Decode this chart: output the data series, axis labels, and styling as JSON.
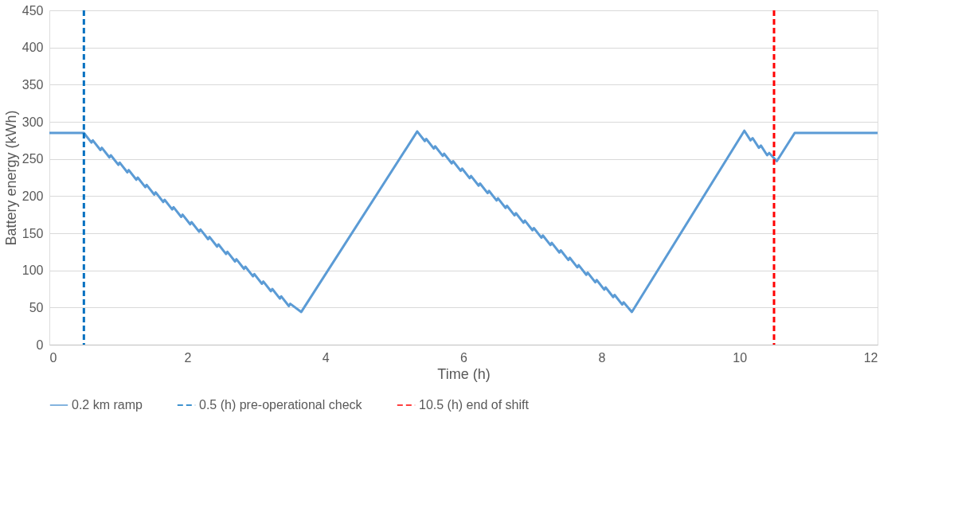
{
  "chart_data": {
    "type": "line",
    "xlabel": "Time (h)",
    "ylabel": "Battery energy (kWh)",
    "xlim": [
      0,
      12
    ],
    "xticks": [
      0,
      2,
      4,
      6,
      8,
      10,
      12
    ],
    "ylim": [
      0,
      450
    ],
    "yticks": [
      0,
      50,
      100,
      150,
      200,
      250,
      300,
      350,
      400,
      450
    ],
    "grid": "y",
    "legend": "bottom",
    "line_style": "solid",
    "marker": "none",
    "x": [
      0,
      0.5,
      0.61,
      0.63,
      0.74,
      0.76,
      0.87,
      0.89,
      1.0,
      1.02,
      1.13,
      1.15,
      1.26,
      1.28,
      1.39,
      1.41,
      1.52,
      1.54,
      1.65,
      1.67,
      1.78,
      1.8,
      1.91,
      1.93,
      2.04,
      2.06,
      2.17,
      2.19,
      2.3,
      2.32,
      2.43,
      2.45,
      2.56,
      2.58,
      2.69,
      2.71,
      2.82,
      2.84,
      2.95,
      2.97,
      3.08,
      3.1,
      3.21,
      3.23,
      3.34,
      3.36,
      3.47,
      3.49,
      3.65,
      5.33,
      5.44,
      5.46,
      5.57,
      5.59,
      5.7,
      5.72,
      5.83,
      5.85,
      5.96,
      5.98,
      6.09,
      6.11,
      6.22,
      6.24,
      6.35,
      6.37,
      6.48,
      6.5,
      6.61,
      6.63,
      6.74,
      6.76,
      6.87,
      6.89,
      7.0,
      7.02,
      7.13,
      7.15,
      7.26,
      7.28,
      7.39,
      7.41,
      7.52,
      7.54,
      7.65,
      7.67,
      7.78,
      7.8,
      7.91,
      7.93,
      8.04,
      8.06,
      8.17,
      8.19,
      8.3,
      8.32,
      8.44,
      10.07,
      10.16,
      10.19,
      10.28,
      10.31,
      10.4,
      10.43,
      10.54,
      10.8,
      12
    ],
    "series": [
      {
        "name": "0.2 km ramp",
        "color": "#5b9bd5",
        "values": [
          285,
          285,
          272,
          275,
          262,
          265,
          252,
          255,
          242,
          245,
          232,
          235,
          222,
          225,
          212,
          215,
          202,
          205,
          192,
          195,
          182,
          185,
          172,
          175,
          162,
          165,
          152,
          155,
          142,
          145,
          132,
          135,
          122,
          125,
          112,
          115,
          102,
          105,
          92,
          95,
          82,
          85,
          72,
          75,
          62,
          65,
          52,
          55,
          44,
          287,
          274,
          277,
          264,
          267,
          254,
          257,
          244,
          247,
          234,
          237,
          224,
          227,
          214,
          217,
          204,
          207,
          194,
          197,
          184,
          187,
          174,
          177,
          164,
          167,
          154,
          157,
          144,
          147,
          134,
          137,
          124,
          127,
          114,
          117,
          104,
          107,
          94,
          97,
          84,
          87,
          74,
          77,
          64,
          67,
          54,
          57,
          44,
          288,
          275,
          278,
          265,
          268,
          255,
          258,
          247,
          285,
          285
        ]
      }
    ],
    "ref_lines": [
      {
        "axis": "x",
        "value": 0.5,
        "label": "0.5 (h) pre-operational check",
        "color": "#0070c0",
        "line_style": "dashed"
      },
      {
        "axis": "x",
        "value": 10.5,
        "label": "10.5 (h) end of shift",
        "color": "#ff0000",
        "line_style": "dashed"
      }
    ]
  }
}
